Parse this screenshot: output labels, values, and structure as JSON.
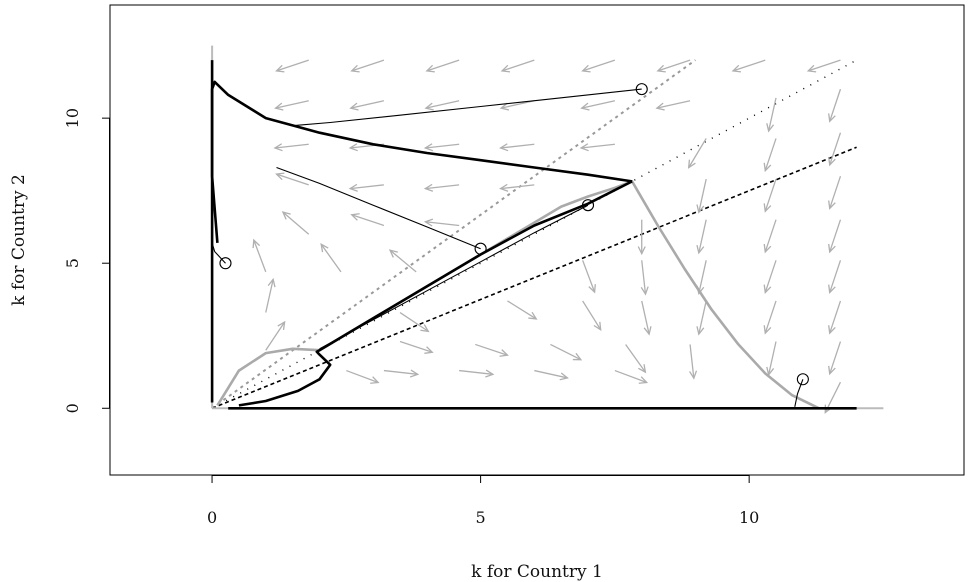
{
  "chart_data": {
    "type": "line",
    "title": "",
    "xlabel": "k for Country 1",
    "ylabel": "k for Country 2",
    "xlim": [
      -1.9,
      14.0
    ],
    "ylim": [
      -2.3,
      13.9
    ],
    "xticks": [
      0,
      5,
      10
    ],
    "yticks": [
      0,
      5,
      10
    ],
    "xtick_labels": [
      "0",
      "5",
      "10"
    ],
    "ytick_labels": [
      "0",
      "5",
      "10"
    ],
    "grid": false,
    "legend": "none",
    "reference_lines": [
      {
        "style": "dotted-gray",
        "color": "#999999",
        "x": [
          0,
          9
        ],
        "y": [
          0,
          12
        ]
      },
      {
        "style": "dotted-black",
        "color": "#000000",
        "x": [
          0,
          12
        ],
        "y": [
          0,
          9
        ]
      },
      {
        "style": "dash-dot-black",
        "color": "#000000",
        "x": [
          0,
          12
        ],
        "y": [
          0,
          12
        ]
      },
      {
        "style": "vertical-gray",
        "color": "#bbbbbb",
        "x": [
          0,
          0
        ],
        "y": [
          0,
          12.5
        ]
      },
      {
        "style": "horizontal-gray",
        "color": "#bbbbbb",
        "x": [
          0,
          12.5
        ],
        "y": [
          0,
          0
        ]
      }
    ],
    "nullclines_gray": [
      {
        "name": "",
        "color": "#aaaaaa",
        "x": [
          0.1,
          0.5,
          1.0,
          1.5,
          2.0,
          2.5,
          3.0,
          3.5,
          4.0,
          4.5,
          5.0,
          5.5,
          6.0,
          6.5,
          7.0,
          7.5,
          7.82,
          8.3,
          8.8,
          9.3,
          9.8,
          10.3,
          10.8,
          11.3
        ],
        "y": [
          0.1,
          1.3,
          1.9,
          2.05,
          2.0,
          2.55,
          3.1,
          3.65,
          4.2,
          4.75,
          5.3,
          5.85,
          6.4,
          6.95,
          7.3,
          7.6,
          7.82,
          6.3,
          4.8,
          3.4,
          2.2,
          1.2,
          0.45,
          0.0
        ]
      }
    ],
    "attractor_boundaries_black": [
      {
        "name": "",
        "x": [
          0.1,
          0.0,
          0.0,
          0.05,
          0.3,
          1.0,
          2.0,
          3.0,
          4.0,
          5.0,
          6.0,
          7.0,
          7.82
        ],
        "y": [
          5.7,
          8.0,
          11.0,
          11.25,
          10.8,
          10.0,
          9.5,
          9.1,
          8.8,
          8.55,
          8.3,
          8.05,
          7.82
        ]
      },
      {
        "name": "",
        "x": [
          0.5,
          1.0,
          1.6,
          2.0,
          2.2,
          2.0,
          1.95,
          2.0,
          3.0,
          4.0,
          5.0,
          6.0,
          7.0,
          7.82
        ],
        "y": [
          0.1,
          0.25,
          0.6,
          1.0,
          1.5,
          1.85,
          1.95,
          2.0,
          3.1,
          4.2,
          5.3,
          6.3,
          7.05,
          7.82
        ]
      },
      {
        "name": "",
        "x": [
          0.3,
          12.0
        ],
        "y": [
          0.0,
          0.0
        ]
      },
      {
        "name": "",
        "x": [
          0.0,
          0.0
        ],
        "y": [
          0.2,
          12.0
        ]
      }
    ],
    "trajectories": [
      {
        "name": "",
        "x": [
          8.0,
          6.5,
          5.0,
          3.5,
          2.2,
          1.55
        ],
        "y": [
          11.0,
          10.7,
          10.4,
          10.1,
          9.85,
          9.75
        ]
      },
      {
        "name": "",
        "x": [
          5.0,
          4.0,
          3.0,
          2.0,
          1.2
        ],
        "y": [
          5.5,
          6.25,
          7.0,
          7.75,
          8.3
        ]
      },
      {
        "name": "",
        "x": [
          7.0,
          6.0,
          5.0,
          4.0,
          3.0,
          2.0
        ],
        "y": [
          7.0,
          6.05,
          5.05,
          4.05,
          3.05,
          2.05
        ]
      },
      {
        "name": "",
        "x": [
          0.25,
          0.05,
          0.0
        ],
        "y": [
          5.0,
          5.4,
          5.7
        ]
      },
      {
        "name": "",
        "x": [
          11.0,
          10.9,
          10.85
        ],
        "y": [
          1.0,
          0.5,
          0.05
        ]
      }
    ],
    "start_points": [
      {
        "x": 8.0,
        "y": 11.0
      },
      {
        "x": 5.0,
        "y": 5.5
      },
      {
        "x": 7.0,
        "y": 7.0
      },
      {
        "x": 0.25,
        "y": 5.0
      },
      {
        "x": 11.0,
        "y": 1.0
      }
    ],
    "vector_field_arrows": [
      {
        "x": 1.8,
        "y": 12.0,
        "dx": -0.9,
        "dy": -0.3
      },
      {
        "x": 3.2,
        "y": 12.0,
        "dx": -0.9,
        "dy": -0.3
      },
      {
        "x": 4.6,
        "y": 12.0,
        "dx": -0.9,
        "dy": -0.3
      },
      {
        "x": 6.0,
        "y": 12.0,
        "dx": -0.9,
        "dy": -0.3
      },
      {
        "x": 7.5,
        "y": 12.0,
        "dx": -0.9,
        "dy": -0.3
      },
      {
        "x": 8.9,
        "y": 12.0,
        "dx": -0.9,
        "dy": -0.3
      },
      {
        "x": 10.3,
        "y": 12.0,
        "dx": -0.9,
        "dy": -0.3
      },
      {
        "x": 11.7,
        "y": 12.0,
        "dx": -0.9,
        "dy": -0.3
      },
      {
        "x": 1.8,
        "y": 10.6,
        "dx": -0.9,
        "dy": -0.2
      },
      {
        "x": 3.2,
        "y": 10.6,
        "dx": -0.9,
        "dy": -0.2
      },
      {
        "x": 4.6,
        "y": 10.6,
        "dx": -0.9,
        "dy": -0.2
      },
      {
        "x": 6.0,
        "y": 10.6,
        "dx": -0.9,
        "dy": -0.2
      },
      {
        "x": 7.5,
        "y": 10.6,
        "dx": -0.9,
        "dy": -0.2
      },
      {
        "x": 8.9,
        "y": 10.6,
        "dx": -0.9,
        "dy": -0.2
      },
      {
        "x": 10.5,
        "y": 10.7,
        "dx": -0.2,
        "dy": -0.9
      },
      {
        "x": 11.7,
        "y": 11.0,
        "dx": -0.3,
        "dy": -0.9
      },
      {
        "x": 1.8,
        "y": 9.1,
        "dx": -0.9,
        "dy": -0.1
      },
      {
        "x": 3.2,
        "y": 9.1,
        "dx": -0.9,
        "dy": -0.1
      },
      {
        "x": 4.6,
        "y": 9.1,
        "dx": -0.9,
        "dy": -0.1
      },
      {
        "x": 6.0,
        "y": 9.1,
        "dx": -0.9,
        "dy": -0.1
      },
      {
        "x": 7.5,
        "y": 9.1,
        "dx": -0.9,
        "dy": -0.1
      },
      {
        "x": 9.2,
        "y": 9.3,
        "dx": -0.3,
        "dy": -0.5
      },
      {
        "x": 10.5,
        "y": 9.3,
        "dx": -0.3,
        "dy": -0.9
      },
      {
        "x": 11.7,
        "y": 9.5,
        "dx": -0.3,
        "dy": -0.9
      },
      {
        "x": 1.8,
        "y": 7.7,
        "dx": -0.9,
        "dy": 0.3
      },
      {
        "x": 3.2,
        "y": 7.7,
        "dx": -0.9,
        "dy": -0.1
      },
      {
        "x": 4.6,
        "y": 7.7,
        "dx": -0.9,
        "dy": -0.1
      },
      {
        "x": 6.0,
        "y": 7.7,
        "dx": -0.9,
        "dy": -0.1
      },
      {
        "x": 9.2,
        "y": 7.9,
        "dx": -0.2,
        "dy": -0.9
      },
      {
        "x": 10.5,
        "y": 7.9,
        "dx": -0.3,
        "dy": -0.9
      },
      {
        "x": 11.7,
        "y": 8.0,
        "dx": -0.3,
        "dy": -0.9
      },
      {
        "x": 1.8,
        "y": 6.0,
        "dx": -0.7,
        "dy": 0.6
      },
      {
        "x": 3.2,
        "y": 6.3,
        "dx": -0.9,
        "dy": 0.3
      },
      {
        "x": 4.6,
        "y": 6.3,
        "dx": -0.9,
        "dy": 0.1
      },
      {
        "x": 8.0,
        "y": 6.5,
        "dx": 0.0,
        "dy": -0.9
      },
      {
        "x": 9.2,
        "y": 6.5,
        "dx": -0.2,
        "dy": -0.9
      },
      {
        "x": 10.5,
        "y": 6.5,
        "dx": -0.3,
        "dy": -0.9
      },
      {
        "x": 11.7,
        "y": 6.5,
        "dx": -0.3,
        "dy": -0.9
      },
      {
        "x": 1.0,
        "y": 4.7,
        "dx": -0.3,
        "dy": 0.8
      },
      {
        "x": 2.4,
        "y": 4.7,
        "dx": -0.5,
        "dy": 0.7
      },
      {
        "x": 3.8,
        "y": 4.7,
        "dx": -0.6,
        "dy": 0.5
      },
      {
        "x": 6.9,
        "y": 5.1,
        "dx": 0.3,
        "dy": -0.8
      },
      {
        "x": 8.0,
        "y": 5.1,
        "dx": 0.1,
        "dy": -0.9
      },
      {
        "x": 9.2,
        "y": 5.1,
        "dx": -0.2,
        "dy": -0.9
      },
      {
        "x": 10.5,
        "y": 5.1,
        "dx": -0.3,
        "dy": -0.9
      },
      {
        "x": 11.7,
        "y": 5.1,
        "dx": -0.3,
        "dy": -0.9
      },
      {
        "x": 1.0,
        "y": 3.3,
        "dx": 0.2,
        "dy": 0.9
      },
      {
        "x": 3.5,
        "y": 3.3,
        "dx": 0.6,
        "dy": -0.4
      },
      {
        "x": 5.5,
        "y": 3.7,
        "dx": 0.8,
        "dy": -0.5
      },
      {
        "x": 6.9,
        "y": 3.7,
        "dx": 0.5,
        "dy": -0.8
      },
      {
        "x": 8.0,
        "y": 3.7,
        "dx": 0.2,
        "dy": -0.9
      },
      {
        "x": 9.2,
        "y": 3.7,
        "dx": -0.2,
        "dy": -0.9
      },
      {
        "x": 10.5,
        "y": 3.7,
        "dx": -0.3,
        "dy": -0.9
      },
      {
        "x": 11.7,
        "y": 3.7,
        "dx": -0.3,
        "dy": -0.9
      },
      {
        "x": 1.0,
        "y": 2.0,
        "dx": 0.4,
        "dy": 0.6
      },
      {
        "x": 2.5,
        "y": 1.3,
        "dx": 0.8,
        "dy": -0.3
      },
      {
        "x": 3.5,
        "y": 2.3,
        "dx": 0.9,
        "dy": -0.3
      },
      {
        "x": 4.9,
        "y": 2.2,
        "dx": 0.9,
        "dy": -0.3
      },
      {
        "x": 6.3,
        "y": 2.2,
        "dx": 0.8,
        "dy": -0.4
      },
      {
        "x": 7.7,
        "y": 2.2,
        "dx": 0.5,
        "dy": -0.7
      },
      {
        "x": 8.9,
        "y": 2.2,
        "dx": 0.1,
        "dy": -0.9
      },
      {
        "x": 10.5,
        "y": 2.3,
        "dx": -0.2,
        "dy": -0.9
      },
      {
        "x": 11.7,
        "y": 2.3,
        "dx": -0.3,
        "dy": -0.9
      },
      {
        "x": 3.2,
        "y": 1.3,
        "dx": 0.9,
        "dy": -0.1
      },
      {
        "x": 4.6,
        "y": 1.3,
        "dx": 0.9,
        "dy": -0.1
      },
      {
        "x": 6.0,
        "y": 1.3,
        "dx": 0.9,
        "dy": -0.2
      },
      {
        "x": 7.5,
        "y": 1.3,
        "dx": 0.8,
        "dy": -0.3
      },
      {
        "x": 11.7,
        "y": 0.9,
        "dx": -0.3,
        "dy": -0.6
      }
    ]
  }
}
